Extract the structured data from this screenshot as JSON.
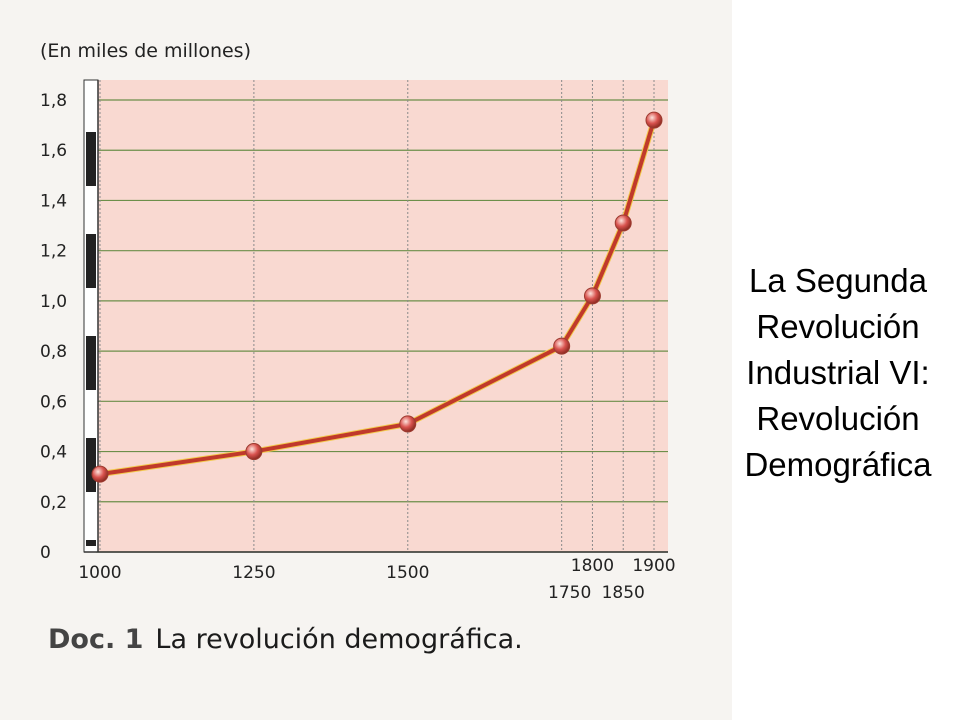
{
  "chart_data": {
    "type": "line",
    "unit_label": "(En miles de millones)",
    "x": [
      1000,
      1250,
      1500,
      1750,
      1800,
      1850,
      1900
    ],
    "y": [
      0.31,
      0.4,
      0.51,
      0.82,
      1.02,
      1.31,
      1.72
    ],
    "x_tick_labels": [
      "1000",
      "1250",
      "1500",
      "1750",
      "1800",
      "1850",
      "1900"
    ],
    "y_tick_labels": [
      "0",
      "0,2",
      "0,4",
      "0,6",
      "0,8",
      "1,0",
      "1,2",
      "1,4",
      "1,6",
      "1,8"
    ],
    "y_ticks": [
      0,
      0.2,
      0.4,
      0.6,
      0.8,
      1.0,
      1.2,
      1.4,
      1.6,
      1.8
    ],
    "ylim": [
      0,
      1.8
    ],
    "xlim": [
      1000,
      1900
    ],
    "grid": true,
    "colors": {
      "plot_background": "#f9d9d1",
      "grid": "#6d8f4a",
      "line": "#c0392b",
      "marker": "#d9534f"
    }
  },
  "caption": {
    "doc_label": "Doc. 1",
    "text": "La revolución demográfica."
  },
  "slide_title": {
    "lines": [
      "La Segunda",
      "Revolución",
      "Industrial VI:",
      "Revolución",
      "Demográfica"
    ]
  }
}
